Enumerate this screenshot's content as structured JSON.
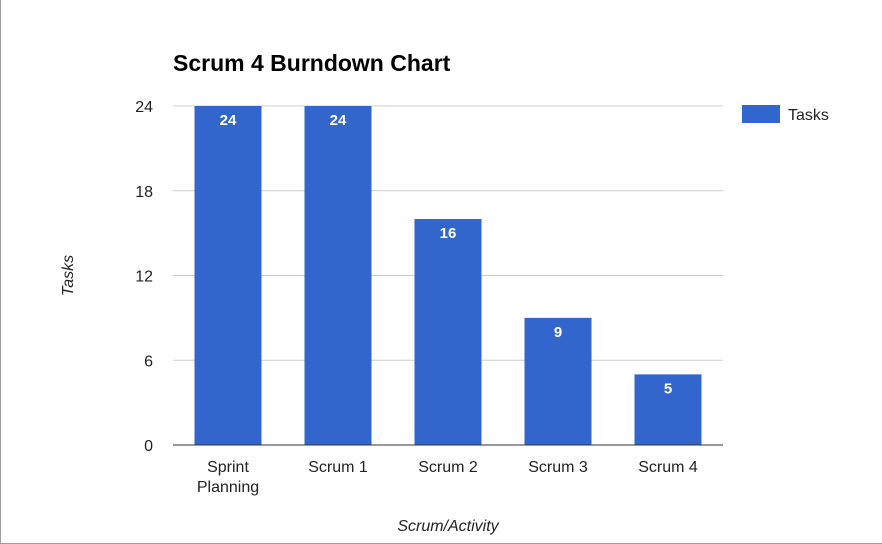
{
  "chart_data": {
    "type": "bar",
    "title": "Scrum 4 Burndown Chart",
    "xlabel": "Scrum/Activity",
    "ylabel": "Tasks",
    "categories": [
      [
        "Sprint",
        "Planning"
      ],
      [
        "Scrum 1"
      ],
      [
        "Scrum 2"
      ],
      [
        "Scrum 3"
      ],
      [
        "Scrum 4"
      ]
    ],
    "series": [
      {
        "name": "Tasks",
        "color": "#3366cc",
        "values": [
          24,
          24,
          16,
          9,
          5
        ]
      }
    ],
    "ylim": [
      0,
      24
    ],
    "yticks": [
      0,
      6,
      12,
      18,
      24
    ],
    "grid": true,
    "legend_position": "right",
    "data_labels": true
  }
}
